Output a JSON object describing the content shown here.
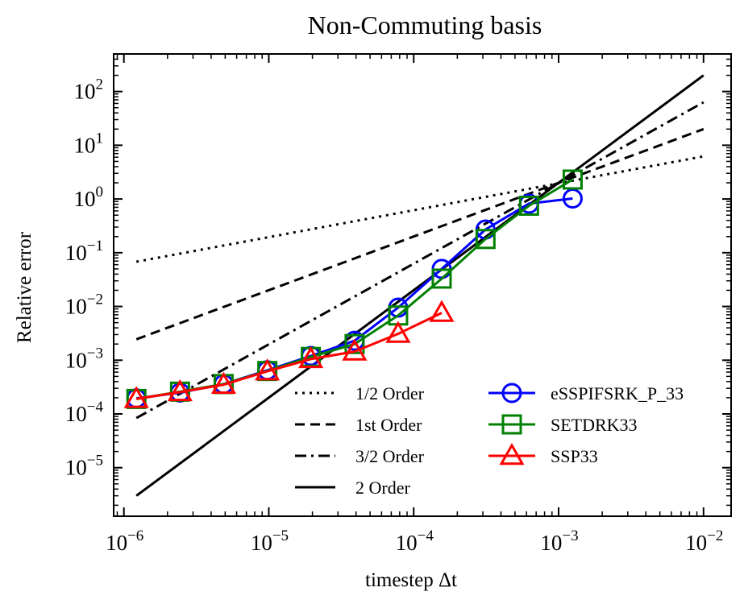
{
  "chart_data": {
    "type": "line",
    "title": "Non-Commuting basis",
    "xlabel": "timestep Δt",
    "ylabel": "Relative error",
    "xscale": "log",
    "yscale": "log",
    "xlim": [
      8.5e-07,
      0.0155
    ],
    "ylim": [
      1.25e-06,
      500
    ],
    "x_ticks": [
      {
        "value": 1e-06,
        "base": "10",
        "exp": "−6"
      },
      {
        "value": 1e-05,
        "base": "10",
        "exp": "−5"
      },
      {
        "value": 0.0001,
        "base": "10",
        "exp": "−4"
      },
      {
        "value": 0.001,
        "base": "10",
        "exp": "−3"
      },
      {
        "value": 0.01,
        "base": "10",
        "exp": "−2"
      }
    ],
    "y_ticks": [
      {
        "value": 1e-05,
        "base": "10",
        "exp": "−5"
      },
      {
        "value": 0.0001,
        "base": "10",
        "exp": "−4"
      },
      {
        "value": 0.001,
        "base": "10",
        "exp": "−3"
      },
      {
        "value": 0.01,
        "base": "10",
        "exp": "−2"
      },
      {
        "value": 0.1,
        "base": "10",
        "exp": "−1"
      },
      {
        "value": 1,
        "base": "10",
        "exp": "0"
      },
      {
        "value": 10,
        "base": "10",
        "exp": "1"
      },
      {
        "value": 100,
        "base": "10",
        "exp": "2"
      }
    ],
    "grid": false,
    "legend_position": "lower-right",
    "reference_lines": [
      {
        "name": "1/2 Order",
        "style": "dotted",
        "color": "#000000",
        "x": [
          1.22e-06,
          0.01
        ],
        "y": [
          0.068,
          6.2
        ]
      },
      {
        "name": "1st Order",
        "style": "dashed",
        "color": "#000000",
        "x": [
          1.22e-06,
          0.01
        ],
        "y": [
          0.00245,
          20.0
        ]
      },
      {
        "name": "3/2 Order",
        "style": "dashdot",
        "color": "#000000",
        "x": [
          1.22e-06,
          0.01
        ],
        "y": [
          8.4e-05,
          63.0
        ]
      },
      {
        "name": "2 Order",
        "style": "solid",
        "color": "#000000",
        "x": [
          1.22e-06,
          0.01
        ],
        "y": [
          3e-06,
          200.0
        ]
      }
    ],
    "series": [
      {
        "name": "eSSPIFSRK_P_33",
        "color": "#0000ff",
        "marker": "circle",
        "x": [
          1.22e-06,
          2.44e-06,
          4.88e-06,
          9.77e-06,
          1.95e-05,
          3.91e-05,
          7.81e-05,
          0.000156,
          0.000313,
          0.000625,
          0.00125
        ],
        "y": [
          0.000195,
          0.00025,
          0.00036,
          0.00065,
          0.0012,
          0.0023,
          0.0095,
          0.05,
          0.27,
          0.82,
          1.02
        ]
      },
      {
        "name": "SETDRK33",
        "color": "#008000",
        "marker": "square",
        "x": [
          1.22e-06,
          2.44e-06,
          4.88e-06,
          9.77e-06,
          1.95e-05,
          3.91e-05,
          7.81e-05,
          0.000156,
          0.000313,
          0.000625,
          0.00125
        ],
        "y": [
          0.00019,
          0.00026,
          0.00036,
          0.00063,
          0.00115,
          0.002,
          0.0068,
          0.033,
          0.18,
          0.75,
          2.3
        ]
      },
      {
        "name": "SSP33",
        "color": "#ff0000",
        "marker": "triangle",
        "x": [
          1.22e-06,
          2.44e-06,
          4.88e-06,
          9.77e-06,
          1.95e-05,
          3.91e-05,
          7.81e-05,
          0.000156
        ],
        "y": [
          0.00019,
          0.000255,
          0.00035,
          0.00062,
          0.00105,
          0.00145,
          0.0031,
          0.0076
        ]
      }
    ]
  }
}
